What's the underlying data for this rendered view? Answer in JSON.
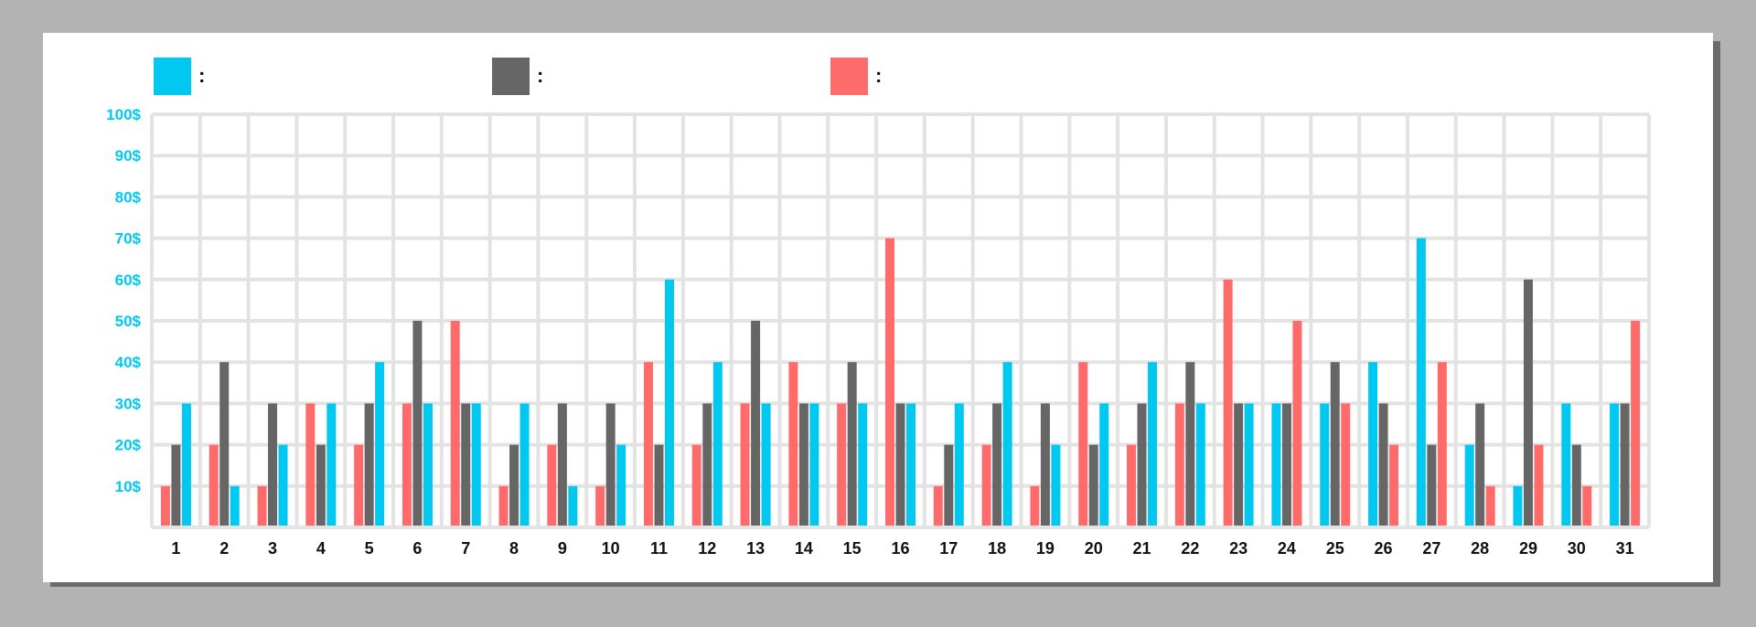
{
  "chart_data": {
    "type": "bar",
    "title": "",
    "xlabel": "",
    "ylabel": "",
    "ylim": [
      0,
      100
    ],
    "y_ticks": [
      "10$",
      "20$",
      "30$",
      "40$",
      "50$",
      "60$",
      "70$",
      "80$",
      "90$",
      "100$"
    ],
    "y_tick_values": [
      10,
      20,
      30,
      40,
      50,
      60,
      70,
      80,
      90,
      100
    ],
    "grid": true,
    "legend_position": "top-left",
    "categories": [
      "1",
      "2",
      "3",
      "4",
      "5",
      "6",
      "7",
      "8",
      "9",
      "10",
      "11",
      "12",
      "13",
      "14",
      "15",
      "16",
      "17",
      "18",
      "19",
      "20",
      "21",
      "22",
      "23",
      "24",
      "25",
      "26",
      "27",
      "28",
      "29",
      "30",
      "31"
    ],
    "series": [
      {
        "legend_text": ":",
        "color": "#00c8f0",
        "values": [
          30,
          10,
          20,
          30,
          40,
          30,
          30,
          30,
          10,
          20,
          60,
          40,
          30,
          30,
          30,
          30,
          30,
          40,
          20,
          30,
          40,
          30,
          30,
          30,
          30,
          40,
          70,
          20,
          10,
          30,
          30
        ]
      },
      {
        "legend_text": ":",
        "color": "#666666",
        "values": [
          20,
          40,
          30,
          20,
          30,
          50,
          30,
          20,
          30,
          30,
          20,
          30,
          50,
          30,
          40,
          30,
          20,
          30,
          30,
          20,
          30,
          40,
          30,
          30,
          40,
          30,
          20,
          30,
          60,
          20,
          30
        ]
      },
      {
        "legend_text": ":",
        "color": "#ff6b6b",
        "values": [
          10,
          20,
          10,
          30,
          20,
          30,
          50,
          10,
          20,
          10,
          40,
          20,
          30,
          40,
          30,
          70,
          10,
          20,
          10,
          40,
          20,
          30,
          60,
          50,
          30,
          20,
          40,
          10,
          20,
          10,
          50
        ]
      }
    ],
    "bar_order_by_category": [
      [
        2,
        1,
        0
      ],
      [
        2,
        1,
        0
      ],
      [
        2,
        1,
        0
      ],
      [
        2,
        1,
        0
      ],
      [
        2,
        1,
        0
      ],
      [
        2,
        1,
        0
      ],
      [
        2,
        1,
        0
      ],
      [
        2,
        1,
        0
      ],
      [
        2,
        1,
        0
      ],
      [
        2,
        1,
        0
      ],
      [
        2,
        1,
        0
      ],
      [
        2,
        1,
        0
      ],
      [
        2,
        1,
        0
      ],
      [
        2,
        1,
        0
      ],
      [
        2,
        1,
        0
      ],
      [
        2,
        1,
        0
      ],
      [
        2,
        1,
        0
      ],
      [
        2,
        1,
        0
      ],
      [
        2,
        1,
        0
      ],
      [
        2,
        1,
        0
      ],
      [
        2,
        1,
        0
      ],
      [
        2,
        1,
        0
      ],
      [
        2,
        1,
        0
      ],
      [
        0,
        1,
        2
      ],
      [
        0,
        1,
        2
      ],
      [
        0,
        1,
        2
      ],
      [
        0,
        1,
        2
      ],
      [
        0,
        1,
        2
      ],
      [
        0,
        1,
        2
      ],
      [
        0,
        1,
        2
      ],
      [
        0,
        1,
        2
      ]
    ],
    "y_tick_color": "#00c8f0",
    "grid_color": "#e3e3e3"
  }
}
